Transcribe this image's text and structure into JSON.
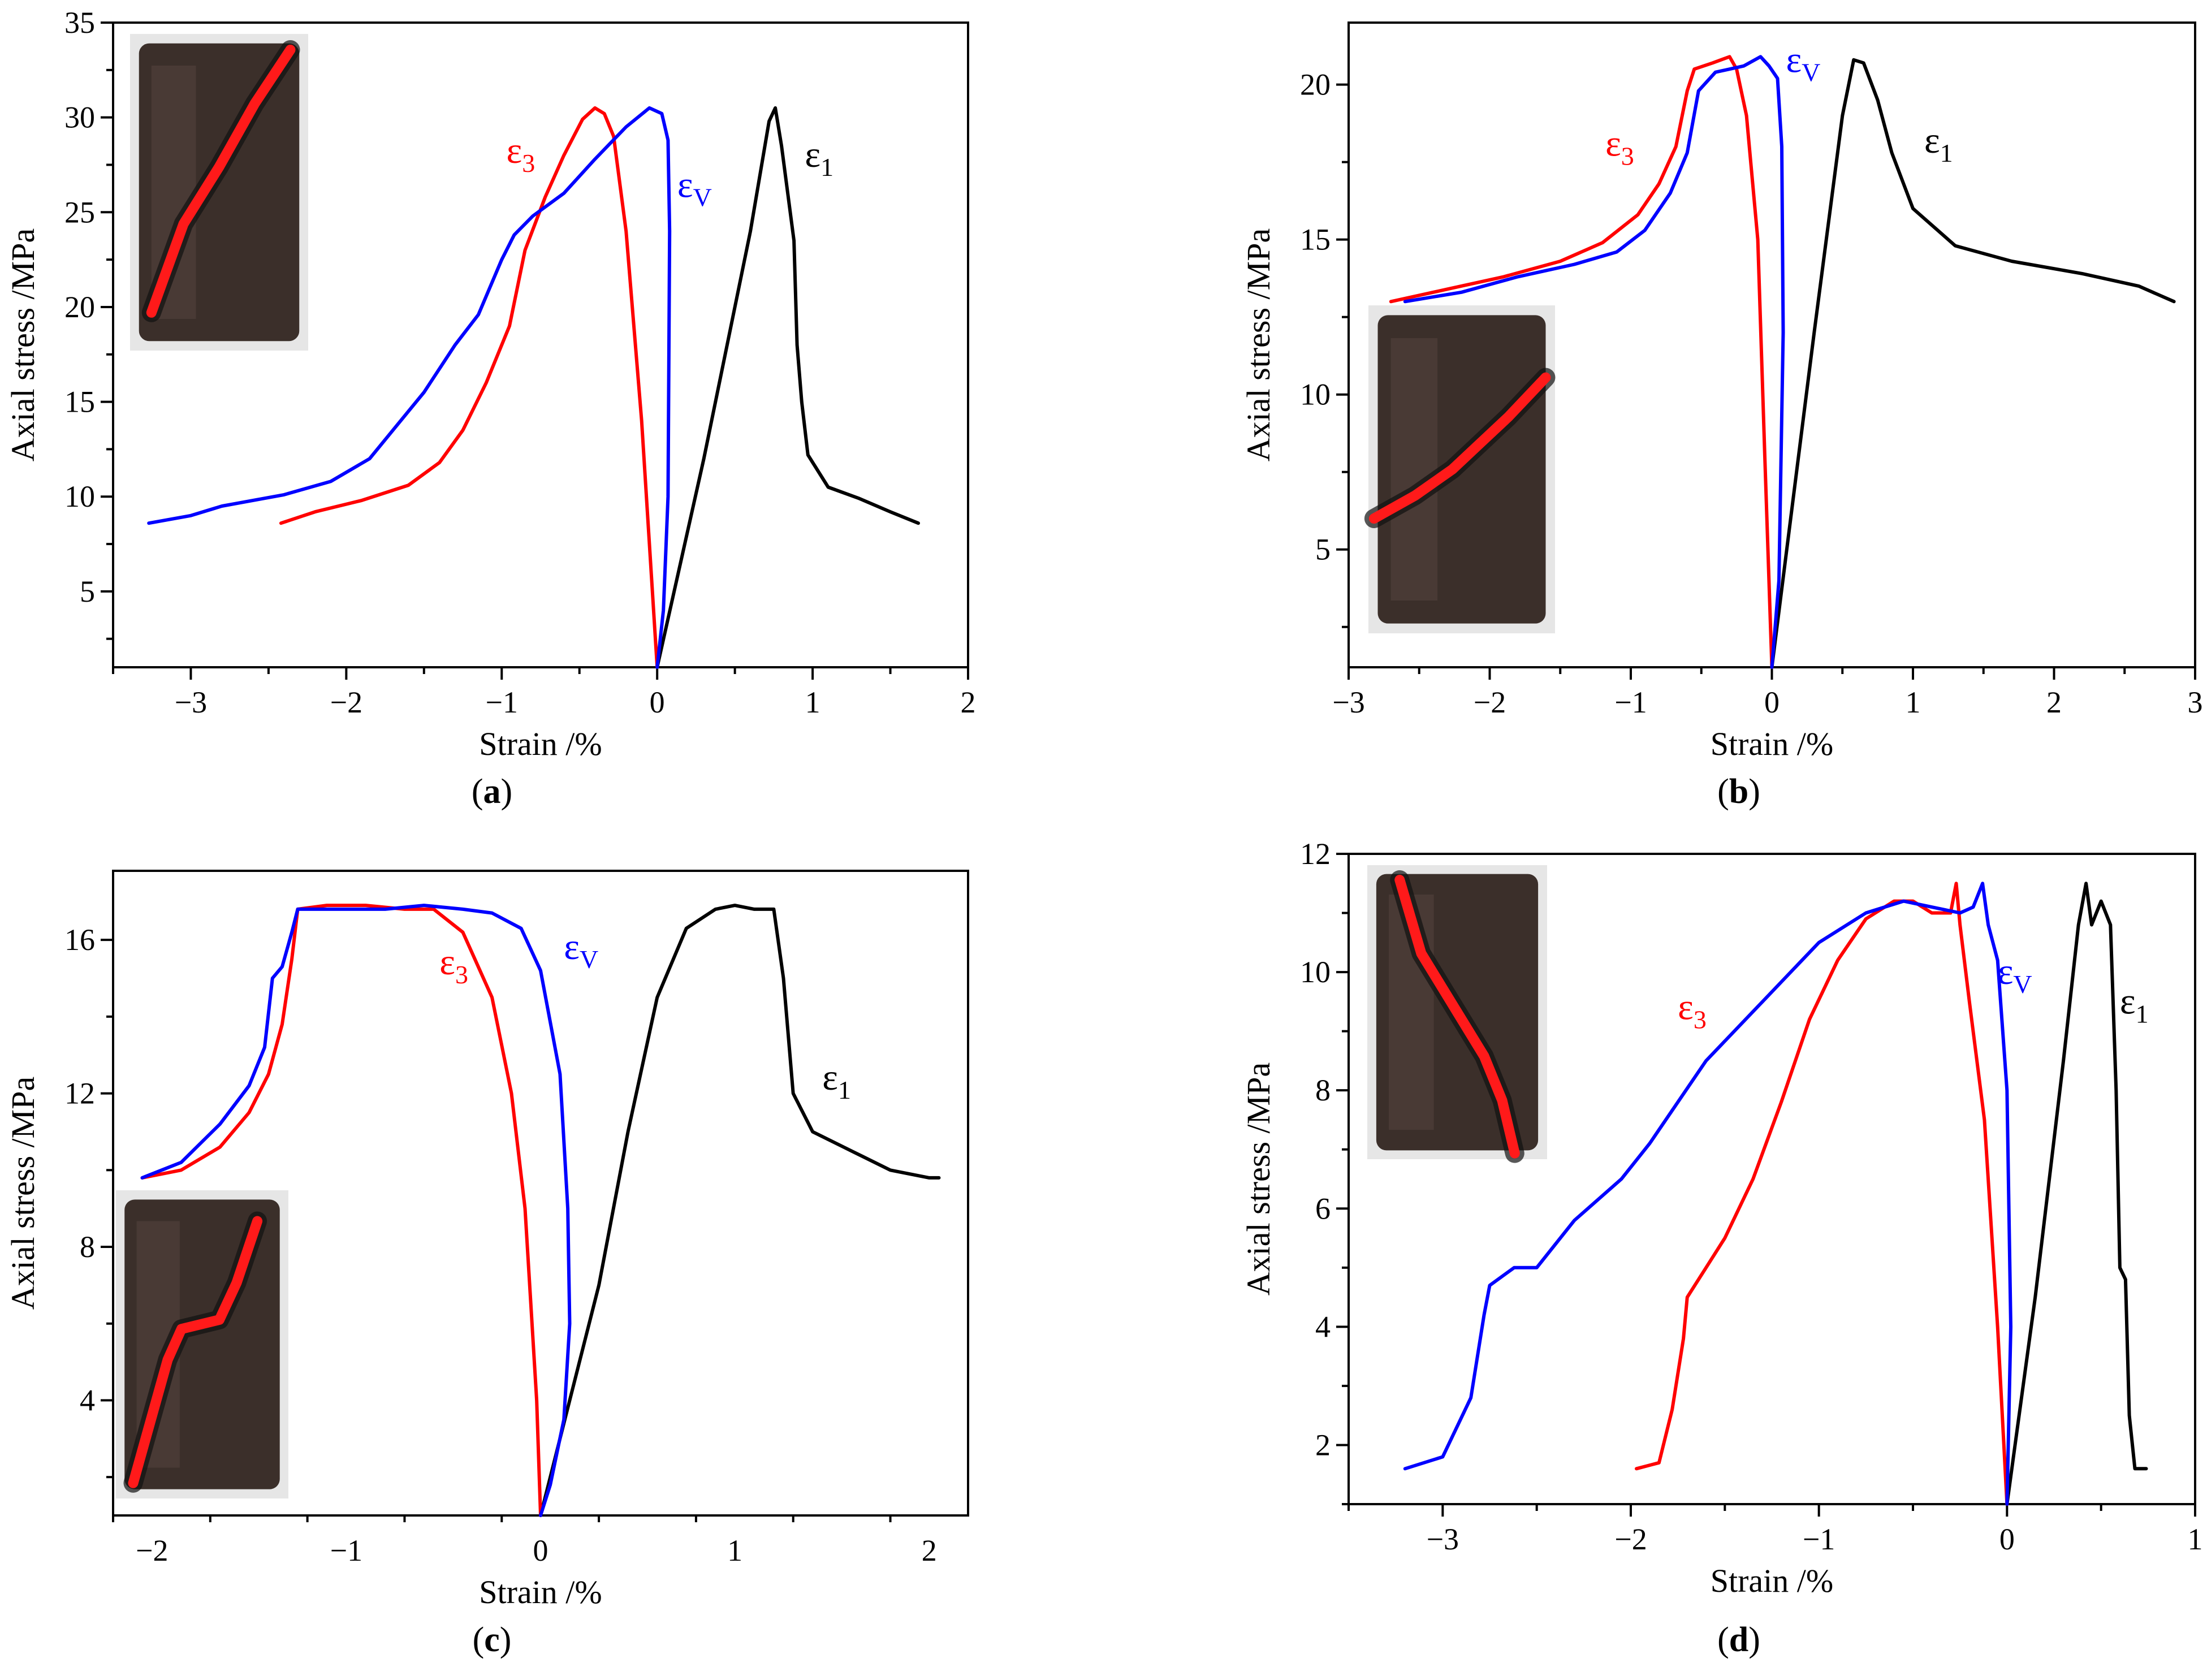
{
  "figure": {
    "panels": [
      {
        "caption": "a"
      },
      {
        "caption": "b"
      },
      {
        "caption": "c"
      },
      {
        "caption": "d"
      }
    ]
  },
  "colors": {
    "epsilon_1": "#000000",
    "epsilon_3": "#ff0000",
    "epsilon_v": "#0000ff",
    "frame": "#000000",
    "crack": "#ff1a1a",
    "rock": "#3b2f2a"
  },
  "legend_labels": {
    "e1": {
      "main": "ε",
      "sub": "1"
    },
    "e3": {
      "main": "ε",
      "sub": "3"
    },
    "ev": {
      "main": "ε",
      "sub": "V"
    }
  },
  "chart_data": [
    {
      "type": "line",
      "panel": "a",
      "xlabel": "Strain /%",
      "ylabel": "Axial stress /MPa",
      "xlim": [
        -3.5,
        2
      ],
      "ylim": [
        1,
        35
      ],
      "xticks": [
        -3,
        -2,
        -1,
        0,
        1,
        2
      ],
      "xtick_labels": [
        "−3",
        "−2",
        "−1",
        "0",
        "1",
        "2"
      ],
      "yticks": [
        5,
        10,
        15,
        20,
        25,
        30,
        35
      ],
      "ytick_labels": [
        "5",
        "10",
        "15",
        "20",
        "25",
        "30",
        "35"
      ],
      "label_anchors": {
        "e1": [
          0.95,
          27.4
        ],
        "e3": [
          -0.97,
          27.6
        ],
        "ev": [
          0.13,
          25.8
        ]
      },
      "photo": {
        "position": "top-left",
        "crack": [
          [
            0.12,
            0.88
          ],
          [
            0.3,
            0.6
          ],
          [
            0.5,
            0.42
          ],
          [
            0.7,
            0.22
          ],
          [
            0.9,
            0.05
          ]
        ]
      },
      "series": [
        {
          "name": "ε1",
          "color": "#000000",
          "x": [
            0,
            0.3,
            0.6,
            0.72,
            0.76,
            0.8,
            0.88,
            0.9,
            0.93,
            0.97,
            1.1,
            1.3,
            1.5,
            1.68
          ],
          "y": [
            1,
            12,
            24,
            29.8,
            30.5,
            28.5,
            23.5,
            18,
            15,
            12.2,
            10.5,
            9.9,
            9.2,
            8.6
          ]
        },
        {
          "name": "ε3",
          "color": "#ff0000",
          "x": [
            -2.42,
            -2.2,
            -1.9,
            -1.6,
            -1.4,
            -1.25,
            -1.1,
            -0.95,
            -0.85,
            -0.72,
            -0.6,
            -0.48,
            -0.4,
            -0.34,
            -0.28,
            -0.2,
            -0.1,
            0
          ],
          "y": [
            8.6,
            9.2,
            9.8,
            10.6,
            11.8,
            13.5,
            16,
            19,
            23,
            25.8,
            28,
            29.9,
            30.5,
            30.2,
            29,
            24,
            14,
            1
          ]
        },
        {
          "name": "εV",
          "color": "#0000ff",
          "x": [
            -3.27,
            -3,
            -2.8,
            -2.4,
            -2.1,
            -1.85,
            -1.7,
            -1.5,
            -1.3,
            -1.15,
            -1,
            -0.92,
            -0.8,
            -0.6,
            -0.4,
            -0.2,
            -0.05,
            0.03,
            0.07,
            0.08,
            0.07,
            0.04,
            0
          ],
          "y": [
            8.6,
            9,
            9.5,
            10.1,
            10.8,
            12,
            13.5,
            15.5,
            18,
            19.6,
            22.5,
            23.8,
            24.8,
            26,
            27.8,
            29.5,
            30.5,
            30.2,
            28.8,
            24,
            10,
            4,
            1
          ]
        }
      ]
    },
    {
      "type": "line",
      "panel": "b",
      "xlabel": "Strain /%",
      "ylabel": "Axial stress /MPa",
      "xlim": [
        -3,
        3
      ],
      "ylim": [
        1.2,
        22
      ],
      "xticks": [
        -3,
        -2,
        -1,
        0,
        1,
        2,
        3
      ],
      "xtick_labels": [
        "−3",
        "−2",
        "−1",
        "0",
        "1",
        "2",
        "3"
      ],
      "yticks": [
        5,
        10,
        15,
        20
      ],
      "ytick_labels": [
        "5",
        "10",
        "15",
        "20"
      ],
      "label_anchors": {
        "e1": [
          1.08,
          17.8
        ],
        "e3": [
          -1.18,
          17.7
        ],
        "ev": [
          0.1,
          20.4
        ]
      },
      "photo": {
        "position": "bottom-left",
        "crack": [
          [
            0.03,
            0.65
          ],
          [
            0.25,
            0.58
          ],
          [
            0.45,
            0.5
          ],
          [
            0.6,
            0.42
          ],
          [
            0.75,
            0.34
          ],
          [
            0.95,
            0.22
          ]
        ]
      },
      "series": [
        {
          "name": "ε1",
          "color": "#000000",
          "x": [
            0,
            0.3,
            0.5,
            0.58,
            0.65,
            0.75,
            0.85,
            1,
            1.3,
            1.7,
            2.2,
            2.6,
            2.85
          ],
          "y": [
            1.2,
            12,
            19,
            20.8,
            20.7,
            19.5,
            17.8,
            16,
            14.8,
            14.3,
            13.9,
            13.5,
            13
          ]
        },
        {
          "name": "ε3",
          "color": "#ff0000",
          "x": [
            -2.7,
            -2.3,
            -1.9,
            -1.5,
            -1.2,
            -0.95,
            -0.8,
            -0.68,
            -0.6,
            -0.55,
            -0.42,
            -0.3,
            -0.25,
            -0.18,
            -0.1,
            -0.05,
            0
          ],
          "y": [
            13,
            13.4,
            13.8,
            14.3,
            14.9,
            15.8,
            16.8,
            18,
            19.8,
            20.5,
            20.7,
            20.9,
            20.5,
            19,
            15,
            8,
            1.2
          ]
        },
        {
          "name": "εV",
          "color": "#0000ff",
          "x": [
            -2.6,
            -2.2,
            -1.8,
            -1.4,
            -1.1,
            -0.9,
            -0.72,
            -0.6,
            -0.52,
            -0.4,
            -0.2,
            -0.08,
            -0.02,
            0.04,
            0.07,
            0.08,
            0.05,
            0
          ],
          "y": [
            13,
            13.3,
            13.8,
            14.2,
            14.6,
            15.3,
            16.5,
            17.8,
            19.8,
            20.4,
            20.6,
            20.9,
            20.6,
            20.2,
            18,
            12,
            4,
            1.2
          ]
        }
      ]
    },
    {
      "type": "line",
      "panel": "c",
      "xlabel": "Strain /%",
      "ylabel": "Axial stress /MPa",
      "xlim": [
        -2.2,
        2.2
      ],
      "ylim": [
        1,
        17.8
      ],
      "xticks": [
        -2,
        -1,
        0,
        1,
        2
      ],
      "xtick_labels": [
        "−2",
        "−1",
        "0",
        "1",
        "2"
      ],
      "yticks": [
        4,
        8,
        12,
        16
      ],
      "ytick_labels": [
        "4",
        "8",
        "12",
        "16"
      ],
      "label_anchors": {
        "e1": [
          1.45,
          12.1
        ],
        "e3": [
          -0.52,
          15.1
        ],
        "ev": [
          0.12,
          15.5
        ]
      },
      "photo": {
        "position": "bottom-left",
        "crack": [
          [
            0.1,
            0.95
          ],
          [
            0.2,
            0.75
          ],
          [
            0.3,
            0.55
          ],
          [
            0.38,
            0.45
          ],
          [
            0.6,
            0.42
          ],
          [
            0.7,
            0.3
          ],
          [
            0.82,
            0.1
          ]
        ]
      },
      "series": [
        {
          "name": "ε1",
          "color": "#000000",
          "x": [
            0,
            0.15,
            0.3,
            0.45,
            0.6,
            0.75,
            0.9,
            1,
            1.1,
            1.2,
            1.25,
            1.3,
            1.4,
            1.6,
            1.8,
            2,
            2.05
          ],
          "y": [
            1,
            4,
            7,
            11,
            14.5,
            16.3,
            16.8,
            16.9,
            16.8,
            16.8,
            15,
            12,
            11,
            10.5,
            10,
            9.8,
            9.8
          ]
        },
        {
          "name": "ε3",
          "color": "#ff0000",
          "x": [
            -2.05,
            -1.85,
            -1.65,
            -1.5,
            -1.4,
            -1.33,
            -1.28,
            -1.25,
            -1.1,
            -0.9,
            -0.7,
            -0.55,
            -0.4,
            -0.25,
            -0.15,
            -0.08,
            -0.02,
            0
          ],
          "y": [
            9.8,
            10,
            10.6,
            11.5,
            12.5,
            13.8,
            15.5,
            16.8,
            16.9,
            16.9,
            16.8,
            16.8,
            16.2,
            14.5,
            12,
            9,
            4,
            1
          ]
        },
        {
          "name": "εV",
          "color": "#0000ff",
          "x": [
            -2.05,
            -1.85,
            -1.65,
            -1.5,
            -1.42,
            -1.38,
            -1.33,
            -1.28,
            -1.25,
            -1.1,
            -0.8,
            -0.6,
            -0.4,
            -0.25,
            -0.1,
            0,
            0.1,
            0.14,
            0.15,
            0.12,
            0.05,
            0
          ],
          "y": [
            9.8,
            10.2,
            11.2,
            12.2,
            13.2,
            15,
            15.3,
            16.2,
            16.8,
            16.8,
            16.8,
            16.9,
            16.8,
            16.7,
            16.3,
            15.2,
            12.5,
            9,
            6,
            3.5,
            1.8,
            1
          ]
        }
      ]
    },
    {
      "type": "line",
      "panel": "d",
      "xlabel": "Strain /%",
      "ylabel": "Axial stress /MPa",
      "xlim": [
        -3.5,
        1
      ],
      "ylim": [
        1,
        12
      ],
      "xticks": [
        -3,
        -2,
        -1,
        0,
        1
      ],
      "xtick_labels": [
        "−3",
        "−2",
        "−1",
        "0",
        "1"
      ],
      "yticks": [
        2,
        4,
        6,
        8,
        10,
        12
      ],
      "ytick_labels": [
        "2",
        "4",
        "6",
        "8",
        "10",
        "12"
      ],
      "label_anchors": {
        "e1": [
          0.6,
          9.3
        ],
        "e3": [
          -1.75,
          9.2
        ],
        "ev": [
          -0.05,
          9.8
        ]
      },
      "photo": {
        "position": "top-left",
        "crack": [
          [
            0.18,
            0.05
          ],
          [
            0.3,
            0.3
          ],
          [
            0.5,
            0.5
          ],
          [
            0.65,
            0.65
          ],
          [
            0.75,
            0.8
          ],
          [
            0.82,
            0.98
          ]
        ]
      },
      "series": [
        {
          "name": "ε1",
          "color": "#000000",
          "x": [
            0,
            0.15,
            0.3,
            0.38,
            0.42,
            0.45,
            0.5,
            0.55,
            0.58,
            0.6,
            0.63,
            0.65,
            0.68,
            0.74
          ],
          "y": [
            1,
            4.5,
            8.5,
            10.8,
            11.5,
            10.8,
            11.2,
            10.8,
            8,
            5,
            4.8,
            2.5,
            1.6,
            1.6
          ]
        },
        {
          "name": "ε3",
          "color": "#ff0000",
          "x": [
            -1.97,
            -1.85,
            -1.78,
            -1.72,
            -1.7,
            -1.6,
            -1.5,
            -1.35,
            -1.2,
            -1.05,
            -0.9,
            -0.75,
            -0.6,
            -0.5,
            -0.4,
            -0.3,
            -0.27,
            -0.25,
            -0.2,
            -0.12,
            -0.05,
            0
          ],
          "y": [
            1.6,
            1.7,
            2.6,
            3.8,
            4.5,
            5,
            5.5,
            6.5,
            7.8,
            9.2,
            10.2,
            10.9,
            11.2,
            11.2,
            11,
            11,
            11.5,
            10.8,
            9.5,
            7.5,
            4,
            1
          ]
        },
        {
          "name": "εV",
          "color": "#0000ff",
          "x": [
            -3.2,
            -3,
            -2.85,
            -2.78,
            -2.75,
            -2.62,
            -2.5,
            -2.3,
            -2.05,
            -1.9,
            -1.6,
            -1.3,
            -1,
            -0.75,
            -0.55,
            -0.4,
            -0.25,
            -0.18,
            -0.13,
            -0.1,
            -0.05,
            0,
            0.02,
            0
          ],
          "y": [
            1.6,
            1.8,
            2.8,
            4.2,
            4.7,
            5,
            5,
            5.8,
            6.5,
            7.1,
            8.5,
            9.5,
            10.5,
            11,
            11.2,
            11.1,
            11,
            11.1,
            11.5,
            10.8,
            10.2,
            8,
            4,
            1
          ]
        }
      ]
    }
  ]
}
